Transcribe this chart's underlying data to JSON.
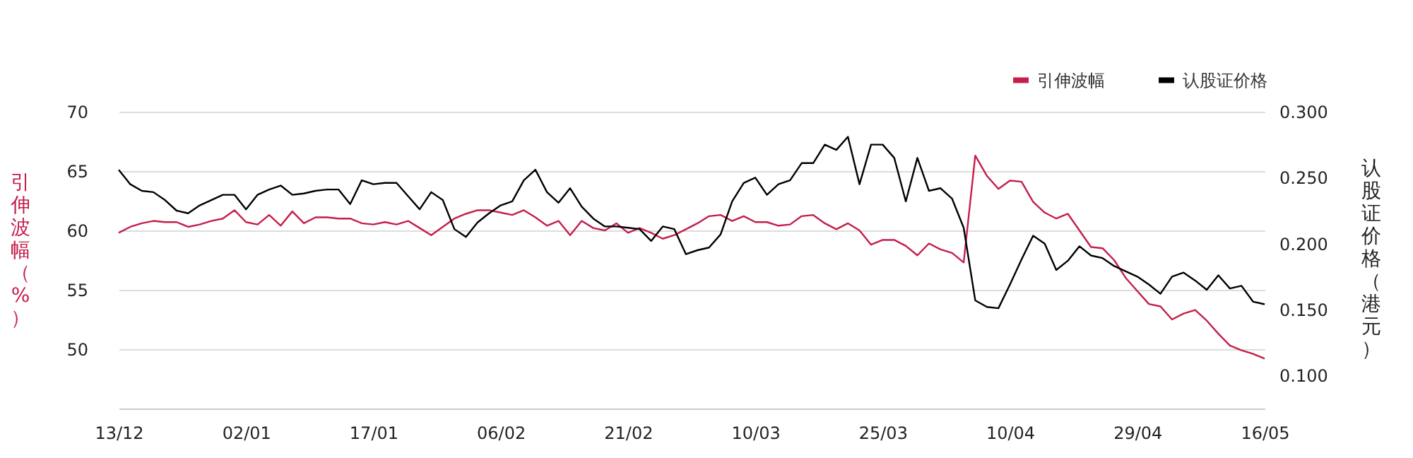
{
  "chart_data": {
    "type": "line",
    "categories": [
      "13/12",
      null,
      null,
      null,
      null,
      null,
      null,
      null,
      null,
      null,
      null,
      "02/01",
      null,
      null,
      null,
      null,
      null,
      null,
      null,
      null,
      null,
      null,
      "17/01",
      null,
      null,
      null,
      null,
      null,
      null,
      null,
      null,
      null,
      null,
      "06/02",
      null,
      null,
      null,
      null,
      null,
      null,
      null,
      null,
      null,
      null,
      "21/02",
      null,
      null,
      null,
      null,
      null,
      null,
      null,
      null,
      null,
      null,
      "10/03",
      null,
      null,
      null,
      null,
      null,
      null,
      null,
      null,
      null,
      null,
      "25/03",
      null,
      null,
      null,
      null,
      null,
      null,
      null,
      null,
      null,
      null,
      "10/04",
      null,
      null,
      null,
      null,
      null,
      null,
      null,
      null,
      null,
      null,
      "29/04",
      null,
      null,
      null,
      null,
      null,
      null,
      null,
      null,
      null,
      null,
      "16/05"
    ],
    "ylabel": "引伸波幅（%）",
    "y2label": "认股证价格（港元）",
    "series": [
      {
        "name": "引伸波幅",
        "color": "#c41e4a",
        "values": [
          59.8,
          60.3,
          60.6,
          60.8,
          60.7,
          60.7,
          60.3,
          60.5,
          60.8,
          61.0,
          61.7,
          60.7,
          60.5,
          61.3,
          60.4,
          61.6,
          60.6,
          61.1,
          61.1,
          61.0,
          61.0,
          60.6,
          60.5,
          60.7,
          60.5,
          60.8,
          60.2,
          59.6,
          60.3,
          61.0,
          61.4,
          61.7,
          61.7,
          61.5,
          61.3,
          61.7,
          61.1,
          60.4,
          60.8,
          59.6,
          60.8,
          60.2,
          60.0,
          60.6,
          59.8,
          60.2,
          59.8,
          59.3,
          59.6,
          60.1,
          60.6,
          61.2,
          61.3,
          60.8,
          61.2,
          60.7,
          60.7,
          60.4,
          60.5,
          61.2,
          61.3,
          60.6,
          60.1,
          60.6,
          60.0,
          58.8,
          59.2,
          59.2,
          58.7,
          57.9,
          58.9,
          58.4,
          58.1,
          57.3,
          66.3,
          64.6,
          63.5,
          64.2,
          64.1,
          62.4,
          61.5,
          61.0,
          61.4,
          60.0,
          58.6,
          58.5,
          57.5,
          56.0,
          54.9,
          53.8,
          53.6,
          52.5,
          53.0,
          53.3,
          52.4,
          51.3,
          50.3,
          49.9,
          49.6,
          49.2
        ]
      },
      {
        "name": "认股证价格",
        "color": "#000000",
        "axis": "y2",
        "values": [
          0.256,
          0.245,
          0.24,
          0.239,
          0.233,
          0.225,
          0.223,
          0.229,
          0.233,
          0.237,
          0.237,
          0.226,
          0.237,
          0.241,
          0.244,
          0.237,
          0.238,
          0.24,
          0.241,
          0.241,
          0.23,
          0.248,
          0.245,
          0.246,
          0.246,
          0.236,
          0.226,
          0.239,
          0.233,
          0.211,
          0.205,
          0.216,
          0.223,
          0.229,
          0.232,
          0.248,
          0.256,
          0.239,
          0.231,
          0.242,
          0.228,
          0.219,
          0.213,
          0.213,
          0.212,
          0.211,
          0.202,
          0.213,
          0.211,
          0.192,
          0.195,
          0.197,
          0.207,
          0.232,
          0.246,
          0.25,
          0.237,
          0.245,
          0.248,
          0.261,
          0.261,
          0.275,
          0.271,
          0.281,
          0.245,
          0.275,
          0.275,
          0.265,
          0.232,
          0.265,
          0.24,
          0.242,
          0.234,
          0.212,
          0.157,
          0.152,
          0.151,
          0.169,
          0.188,
          0.206,
          0.2,
          0.18,
          0.187,
          0.198,
          0.191,
          0.189,
          0.183,
          0.179,
          0.175,
          0.169,
          0.162,
          0.175,
          0.178,
          0.172,
          0.165,
          0.176,
          0.166,
          0.168,
          0.156,
          0.154
        ]
      }
    ],
    "ylim": [
      45,
      70
    ],
    "yticks": [
      50,
      55,
      60,
      65,
      70
    ],
    "y2lim": [
      0.075,
      0.3
    ],
    "y2ticks": [
      {
        "value": 0.1,
        "label": "0.100"
      },
      {
        "value": 0.15,
        "label": "0.150"
      },
      {
        "value": 0.2,
        "label": "0.200"
      },
      {
        "value": 0.25,
        "label": "0.250"
      },
      {
        "value": 0.3,
        "label": "0.300"
      }
    ],
    "grid": "y",
    "legend": "top right",
    "marker": "none",
    "line_style": "solid"
  }
}
